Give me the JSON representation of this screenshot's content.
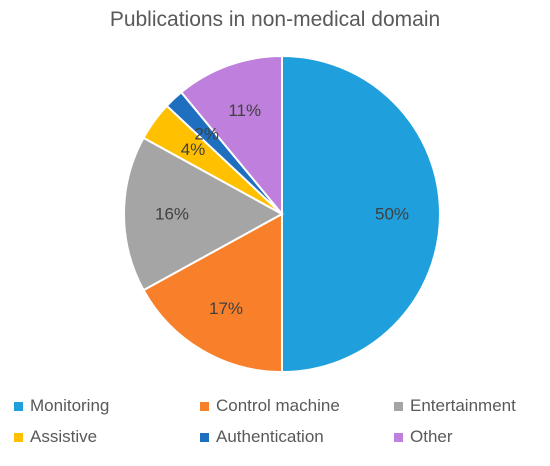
{
  "chart_data": {
    "type": "pie",
    "title": "Publications in non-medical domain",
    "slices": [
      {
        "label": "Monitoring",
        "value": 50,
        "data_label": "50%",
        "color": "#1F9FDC"
      },
      {
        "label": "Control machine",
        "value": 17,
        "data_label": "17%",
        "color": "#F8802B"
      },
      {
        "label": "Entertainment",
        "value": 16,
        "data_label": "16%",
        "color": "#A5A5A5"
      },
      {
        "label": "Assistive",
        "value": 4,
        "data_label": "4%",
        "color": "#FFC000"
      },
      {
        "label": "Authentication",
        "value": 2,
        "data_label": "2%",
        "color": "#1E6FBF"
      },
      {
        "label": "Other",
        "value": 11,
        "data_label": "11%",
        "color": "#BF7FDC"
      }
    ],
    "legend_position": "bottom",
    "start_angle": "top",
    "direction": "clockwise"
  }
}
